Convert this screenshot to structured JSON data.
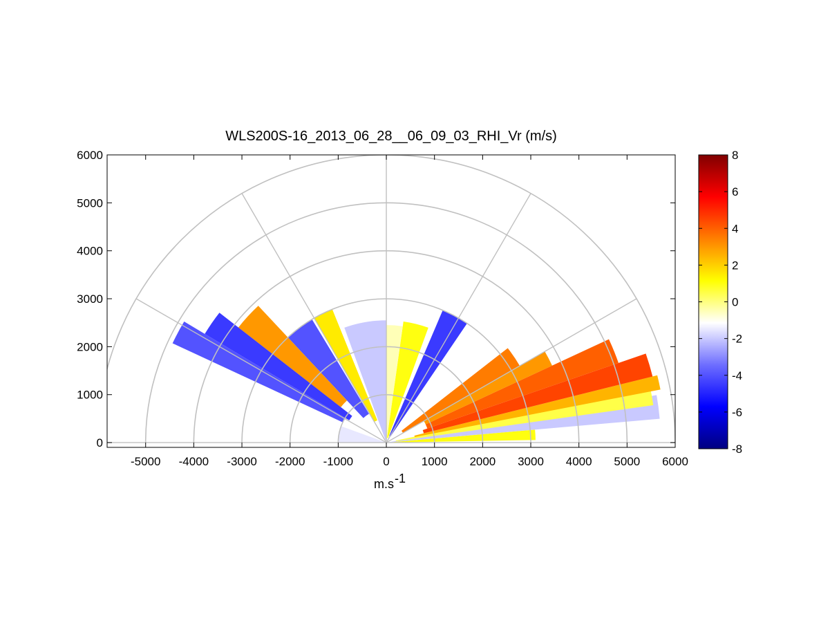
{
  "chart_data": {
    "type": "heatmap",
    "title": "WLS200S-16_2013_06_28__06_09_03_RHI_Vr (m/s)",
    "xlabel_base": "m.s",
    "xlabel_exp": "-1",
    "ylabel": "",
    "xlim": [
      -5800,
      6000
    ],
    "ylim": [
      -100,
      6000
    ],
    "x_ticks": [
      "-5000",
      "-4000",
      "-3000",
      "-2000",
      "-1000",
      "0",
      "1000",
      "2000",
      "3000",
      "4000",
      "5000",
      "6000"
    ],
    "x_tick_values": [
      -5000,
      -4000,
      -3000,
      -2000,
      -1000,
      0,
      1000,
      2000,
      3000,
      4000,
      5000,
      6000
    ],
    "y_ticks": [
      "0",
      "1000",
      "2000",
      "3000",
      "4000",
      "5000",
      "6000"
    ],
    "y_tick_values": [
      0,
      1000,
      2000,
      3000,
      4000,
      5000,
      6000
    ],
    "polar_grid": {
      "range_rings": [
        1000,
        2000,
        3000,
        4000,
        5000,
        6000
      ],
      "azimuth_spokes_deg": [
        0,
        30,
        60,
        90,
        120,
        150,
        180
      ]
    },
    "colorbar": {
      "min": -8,
      "max": 8,
      "ticks": [
        "8",
        "6",
        "4",
        "2",
        "0",
        "-2",
        "-4",
        "-6",
        "-8"
      ],
      "tick_values": [
        8,
        6,
        4,
        2,
        0,
        -2,
        -4,
        -6,
        -8
      ],
      "colormap": [
        "#000080",
        "#0000ff",
        "#6e6eff",
        "#ffffff",
        "#ffff00",
        "#ff8000",
        "#ff0000",
        "#800000"
      ]
    },
    "grid": true,
    "sectors": [
      {
        "angle_from_deg": 1.0,
        "angle_to_deg": 5.0,
        "range_from": 0,
        "range_to": 3100,
        "velocity": 1.0
      },
      {
        "angle_from_deg": 5.0,
        "angle_to_deg": 10.0,
        "range_from": 0,
        "range_to": 5700,
        "velocity": -2.0
      },
      {
        "angle_from_deg": 8.0,
        "angle_to_deg": 12.0,
        "range_from": 200,
        "range_to": 5600,
        "velocity": 0.5
      },
      {
        "angle_from_deg": 11.0,
        "angle_to_deg": 14.0,
        "range_from": 600,
        "range_to": 5800,
        "velocity": 2.5
      },
      {
        "angle_from_deg": 14.0,
        "angle_to_deg": 19.0,
        "range_from": 800,
        "range_to": 5700,
        "velocity": 4.5
      },
      {
        "angle_from_deg": 19.0,
        "angle_to_deg": 25.0,
        "range_from": 900,
        "range_to": 5100,
        "velocity": 4.0
      },
      {
        "angle_from_deg": 25.0,
        "angle_to_deg": 30.0,
        "range_from": 900,
        "range_to": 3800,
        "velocity": 3.0
      },
      {
        "angle_from_deg": 30.0,
        "angle_to_deg": 38.0,
        "range_from": 400,
        "range_to": 3200,
        "velocity": 3.5
      },
      {
        "angle_from_deg": 56.0,
        "angle_to_deg": 67.0,
        "range_from": 150,
        "range_to": 3000,
        "velocity": -4.5
      },
      {
        "angle_from_deg": 70.0,
        "angle_to_deg": 82.0,
        "range_from": 100,
        "range_to": 2550,
        "velocity": 1.0
      },
      {
        "angle_from_deg": 82.0,
        "angle_to_deg": 90.0,
        "range_from": 50,
        "range_to": 2450,
        "velocity": -0.5
      },
      {
        "angle_from_deg": 90.0,
        "angle_to_deg": 110.0,
        "range_from": 60,
        "range_to": 2550,
        "velocity": -2.0
      },
      {
        "angle_from_deg": 112.0,
        "angle_to_deg": 120.0,
        "range_from": 500,
        "range_to": 3000,
        "velocity": 1.5
      },
      {
        "angle_from_deg": 121.0,
        "angle_to_deg": 133.0,
        "range_from": 700,
        "range_to": 3000,
        "velocity": -4.0
      },
      {
        "angle_from_deg": 133.0,
        "angle_to_deg": 142.0,
        "range_from": 1200,
        "range_to": 3900,
        "velocity": 3.0
      },
      {
        "angle_from_deg": 142.0,
        "angle_to_deg": 149.0,
        "range_from": 900,
        "range_to": 4400,
        "velocity": -4.5
      },
      {
        "angle_from_deg": 149.0,
        "angle_to_deg": 155.0,
        "range_from": 1000,
        "range_to": 4900,
        "velocity": -4.0
      },
      {
        "angle_from_deg": 160.0,
        "angle_to_deg": 180.0,
        "range_from": 0,
        "range_to": 1000,
        "velocity": -1.5
      }
    ]
  }
}
